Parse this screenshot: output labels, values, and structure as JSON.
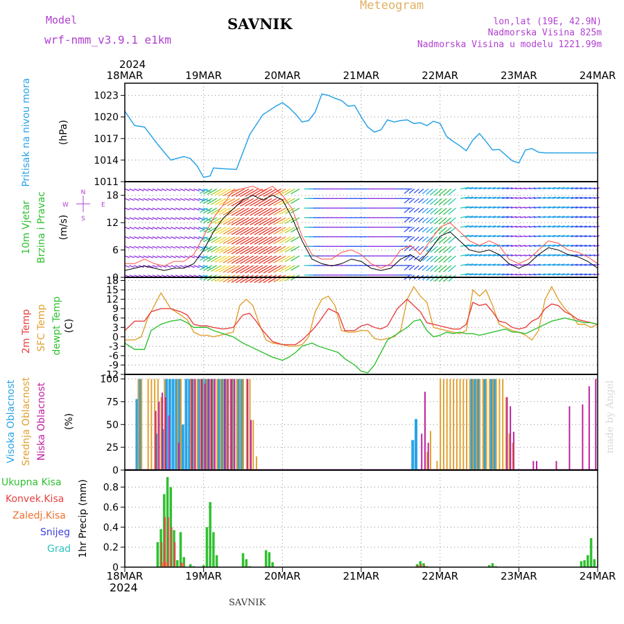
{
  "header": {
    "model_label": "Model",
    "model_name": "wrf-nmm_v3.9.1 e1km",
    "station": "SAVNIK",
    "product": "Meteogram",
    "coords": "lon,lat (19E, 42.9N)",
    "altitude": "Nadmorska Visina 825m",
    "model_altitude": "Nadmorska Visina u modelu 1221.99m",
    "year_top": "2024",
    "year_bottom": "2024",
    "footer": "SAVNIK",
    "credit": "made by Angel"
  },
  "colors": {
    "pressure": "#29a3e6",
    "temp2m": "#e84040",
    "sfc": "#e0a030",
    "dewpt": "#30c030",
    "high_cloud": "#29a3e6",
    "mid_cloud": "#e0a030",
    "low_cloud": "#c020a0",
    "total_precip": "#30c030",
    "conv_precip": "#e84040",
    "frz_precip": "#f07030",
    "snow": "#4040e0",
    "hail": "#30c0c0"
  },
  "chart_data": [
    {
      "type": "line",
      "name": "pressure",
      "ylabel_parts": [
        "Pritisak na nivou mora",
        "(hPa)"
      ],
      "ylim": [
        1011,
        1024.7
      ],
      "yticks": [
        "1011",
        "1014",
        "1017",
        "1020",
        "1023"
      ],
      "x_hours": [
        0,
        3,
        6,
        10,
        14,
        18,
        20,
        22,
        24,
        26,
        27,
        30,
        34,
        38,
        42,
        46,
        48,
        50,
        52,
        54,
        56,
        58,
        60,
        62,
        64,
        66,
        68,
        70,
        72,
        74,
        76,
        78,
        80,
        82,
        84,
        86,
        88,
        90,
        92,
        94,
        96,
        98,
        100,
        102,
        104,
        106,
        108,
        110,
        112,
        114,
        116,
        118,
        120,
        122,
        124,
        126,
        128,
        130,
        132,
        134,
        136,
        138,
        140,
        142,
        144
      ],
      "values": [
        1020.8,
        1018.8,
        1018.6,
        1016.2,
        1014.0,
        1014.5,
        1014.2,
        1013.2,
        1011.6,
        1011.8,
        1012.9,
        1012.8,
        1012.7,
        1017.5,
        1020.3,
        1021.5,
        1022.0,
        1021.3,
        1020.4,
        1019.3,
        1019.5,
        1020.7,
        1023.2,
        1023.0,
        1022.6,
        1022.3,
        1021.5,
        1021.6,
        1020.0,
        1018.6,
        1017.9,
        1018.2,
        1019.6,
        1019.3,
        1019.5,
        1019.6,
        1019.1,
        1019.2,
        1018.8,
        1019.4,
        1019.1,
        1017.3,
        1016.6,
        1016.0,
        1015.3,
        1016.8,
        1017.7,
        1016.6,
        1015.4,
        1015.5,
        1014.7,
        1013.9,
        1013.6,
        1015.4,
        1015.6,
        1015.1,
        1015.0,
        1015.0,
        1015.0,
        1015.0,
        1015.0,
        1015.0,
        1015.0,
        1015.0,
        1015.0
      ]
    },
    {
      "type": "line",
      "name": "wind",
      "ylabel_parts": [
        "10m Vjetar",
        "Brzina i Pravac",
        "(m/s)"
      ],
      "compass": [
        "N",
        "W",
        "E",
        "S"
      ],
      "ylim": [
        0,
        21
      ],
      "yticks": [
        "0",
        "6",
        "12",
        "18"
      ],
      "speed_hours": [
        0,
        3,
        6,
        9,
        12,
        15,
        18,
        21,
        24,
        27,
        30,
        33,
        36,
        39,
        42,
        45,
        48,
        51,
        54,
        57,
        60,
        63,
        66,
        69,
        72,
        75,
        78,
        81,
        84,
        87,
        90,
        93,
        96,
        99,
        102,
        105,
        108,
        111,
        114,
        117,
        120,
        123,
        126,
        129,
        132,
        135,
        138,
        141,
        144
      ],
      "speed": [
        1.5,
        2.0,
        2.5,
        2.0,
        1.5,
        2.0,
        2.0,
        3.0,
        6.0,
        10.0,
        13.0,
        15.0,
        17.0,
        18.0,
        17.0,
        18.0,
        17.0,
        13.0,
        8.0,
        4.0,
        3.0,
        2.5,
        3.0,
        4.0,
        3.5,
        2.0,
        1.5,
        2.0,
        4.0,
        5.0,
        3.5,
        6.0,
        9.0,
        10.0,
        8.0,
        6.0,
        5.5,
        6.0,
        5.0,
        3.0,
        2.0,
        3.0,
        5.0,
        6.5,
        6.0,
        5.0,
        4.5,
        3.5,
        2.0
      ],
      "gust": [
        3.0,
        3.0,
        4.0,
        3.0,
        2.5,
        3.5,
        3.5,
        5.0,
        9.0,
        13.0,
        16.0,
        19.0,
        19.5,
        20.0,
        19.0,
        20.0,
        18.0,
        15.0,
        9.0,
        5.0,
        4.0,
        4.0,
        5.5,
        6.0,
        5.0,
        3.0,
        2.0,
        3.0,
        6.0,
        7.0,
        5.0,
        8.0,
        11.0,
        12.0,
        10.0,
        8.0,
        7.0,
        8.0,
        7.0,
        4.0,
        3.0,
        4.0,
        6.0,
        8.0,
        7.5,
        6.0,
        5.5,
        4.5,
        3.0
      ]
    },
    {
      "type": "line",
      "name": "temperature",
      "ylabel_parts": [
        "2m Temp",
        "SFC Temp",
        "dewpt Temp",
        "(C)"
      ],
      "ylim": [
        -12,
        19
      ],
      "yticks": [
        "-12",
        "-9",
        "-6",
        "-3",
        "0",
        "3",
        "6",
        "9",
        "12",
        "15",
        "18"
      ],
      "series": [
        {
          "name": "2m Temp",
          "x": [
            0,
            3,
            6,
            8,
            11,
            14,
            17,
            19,
            21,
            23,
            25,
            27,
            30,
            33,
            36,
            38,
            40,
            42,
            45,
            48,
            50,
            52,
            54,
            57,
            59,
            62,
            65,
            67,
            70,
            72,
            74,
            76,
            78,
            80,
            83,
            86,
            88,
            90,
            92,
            94,
            96,
            98,
            100,
            102,
            104,
            106,
            108,
            110,
            112,
            114,
            116,
            118,
            120,
            122,
            124,
            126,
            128,
            130,
            132,
            134,
            136,
            138,
            140,
            142,
            144
          ],
          "values": [
            2,
            5,
            5,
            8,
            9,
            9,
            8,
            7,
            4,
            3.5,
            3.5,
            3,
            2.5,
            3,
            7,
            7.5,
            5,
            2,
            -1.5,
            -2.5,
            -2.5,
            -2.5,
            -1,
            2,
            4.5,
            9,
            7.5,
            2,
            2,
            3.5,
            4,
            3,
            2.5,
            3.5,
            9,
            12,
            10,
            8,
            4.5,
            4,
            3.5,
            3,
            2.5,
            2.5,
            4,
            11,
            10,
            10.5,
            8,
            5,
            4.5,
            3,
            2.5,
            3,
            5,
            6,
            9,
            10.5,
            10,
            8,
            7,
            5.5,
            5,
            4.5,
            4
          ]
        },
        {
          "name": "SFC Temp",
          "x": [
            0,
            3,
            5,
            7,
            9,
            11,
            14,
            17,
            19,
            21,
            23,
            25,
            27,
            29,
            31,
            33,
            35,
            37,
            39,
            41,
            43,
            45,
            48,
            50,
            52,
            54,
            56,
            58,
            60,
            62,
            64,
            66,
            68,
            70,
            72,
            74,
            76,
            78,
            80,
            82,
            84,
            86,
            88,
            90,
            92,
            94,
            96,
            98,
            100,
            102,
            104,
            106,
            108,
            110,
            112,
            114,
            116,
            118,
            120,
            122,
            124,
            126,
            128,
            130,
            132,
            134,
            136,
            138,
            140,
            142,
            144
          ],
          "values": [
            -1,
            -1,
            0,
            6,
            10,
            14,
            9,
            7,
            5.5,
            1.5,
            0.5,
            0.5,
            0,
            0.5,
            1,
            1.5,
            10,
            12,
            10,
            4,
            -1,
            -2,
            -2.5,
            -3,
            -3,
            -2.5,
            0,
            8,
            12,
            13,
            10,
            2,
            1.5,
            1.5,
            2,
            2,
            -0.5,
            -1,
            -0.5,
            0,
            2,
            12,
            16,
            13,
            11,
            3,
            2.5,
            2,
            1.5,
            1,
            2,
            15,
            13,
            15,
            10,
            4,
            3,
            2,
            1.5,
            0.5,
            -1,
            2,
            12,
            16,
            12,
            9,
            7,
            4,
            4,
            3,
            4
          ]
        },
        {
          "name": "dewpt Temp",
          "x": [
            0,
            3,
            6,
            8,
            11,
            14,
            17,
            19,
            21,
            23,
            25,
            27,
            30,
            33,
            36,
            38,
            40,
            42,
            45,
            48,
            50,
            52,
            54,
            57,
            59,
            62,
            65,
            67,
            70,
            72,
            74,
            76,
            78,
            80,
            83,
            86,
            88,
            90,
            92,
            94,
            96,
            98,
            100,
            102,
            104,
            106,
            108,
            110,
            112,
            114,
            116,
            118,
            120,
            122,
            124,
            126,
            128,
            130,
            132,
            134,
            136,
            138,
            140,
            142,
            144
          ],
          "values": [
            -2,
            -4,
            -4,
            2,
            4,
            5,
            5.5,
            4.5,
            3,
            3,
            3,
            2,
            1,
            0,
            -2,
            -3,
            -4,
            -5,
            -6.5,
            -7.5,
            -6.5,
            -5,
            -3,
            -2,
            -3,
            -4,
            -5,
            -7,
            -9,
            -11,
            -11.5,
            -9,
            -5,
            -1,
            1,
            3,
            5,
            5.5,
            2,
            0,
            0.5,
            1.5,
            1,
            1.5,
            1,
            1,
            0.5,
            1,
            1.5,
            2,
            2.5,
            1.5,
            1.5,
            1,
            2,
            3,
            4,
            5,
            5.5,
            6,
            5.5,
            5,
            4.5,
            4.5,
            4
          ]
        }
      ]
    },
    {
      "type": "bar",
      "name": "cloud",
      "ylabel_parts": [
        "Visoka Oblacnost",
        "Srednja Oblacnost",
        "Niska Oblacnost",
        "(%)"
      ],
      "ylim": [
        0,
        105
      ],
      "yticks": [
        "0",
        "25",
        "50",
        "75",
        "100"
      ],
      "series": [
        {
          "name": "Visoka Oblacnost",
          "hours": [
            4,
            5,
            10,
            12,
            13,
            14,
            15,
            16,
            17,
            18,
            19,
            20,
            21,
            23,
            24,
            25,
            26,
            27,
            29,
            30,
            31,
            33,
            35,
            36,
            88,
            89,
            106,
            107,
            108,
            110,
            112,
            113
          ],
          "values": [
            78,
            100,
            40,
            45,
            100,
            100,
            100,
            100,
            100,
            50,
            100,
            100,
            100,
            100,
            100,
            100,
            100,
            100,
            100,
            100,
            100,
            100,
            100,
            100,
            33,
            56,
            100,
            100,
            100,
            100,
            100,
            100
          ]
        },
        {
          "name": "Srednja Oblacnost",
          "hours": [
            4,
            5,
            7,
            8,
            9,
            10,
            11,
            12,
            16,
            17,
            20,
            21,
            22,
            23,
            24,
            25,
            26,
            27,
            28,
            29,
            30,
            31,
            32,
            33,
            34,
            35,
            36,
            37,
            38,
            39,
            40,
            92,
            93,
            95,
            96,
            97,
            98,
            99,
            100,
            101,
            102,
            103,
            104,
            105,
            106,
            107,
            108,
            109,
            110,
            111,
            112,
            113,
            114,
            115,
            116,
            117,
            118
          ],
          "values": [
            100,
            100,
            100,
            100,
            100,
            100,
            80,
            100,
            100,
            100,
            100,
            100,
            100,
            100,
            100,
            100,
            100,
            100,
            100,
            100,
            100,
            100,
            100,
            100,
            100,
            100,
            100,
            100,
            100,
            55,
            15,
            20,
            43,
            10,
            100,
            100,
            100,
            100,
            100,
            100,
            100,
            100,
            100,
            100,
            100,
            100,
            100,
            100,
            100,
            100,
            100,
            100,
            100,
            100,
            80,
            40,
            30
          ]
        },
        {
          "name": "Niska Oblacnost",
          "hours": [
            9,
            10,
            11,
            12,
            13,
            16,
            20,
            21,
            23,
            24,
            25,
            26,
            27,
            30,
            31,
            32,
            33,
            37,
            38,
            90,
            91,
            92,
            116,
            117,
            118,
            124,
            125,
            131,
            135,
            139,
            141,
            143
          ],
          "values": [
            65,
            75,
            85,
            80,
            60,
            30,
            100,
            100,
            100,
            95,
            100,
            100,
            100,
            100,
            100,
            100,
            100,
            100,
            55,
            40,
            86,
            30,
            80,
            70,
            42,
            10,
            10,
            10,
            70,
            72,
            92,
            100
          ]
        }
      ]
    },
    {
      "type": "bar",
      "name": "precipitation",
      "ylabel_parts": [
        "1hr Precip (mm)"
      ],
      "legend": [
        "Ukupna Kisa",
        "Konvek.Kisa",
        "Zaledj.Kisa",
        "Snijeg",
        "Grad"
      ],
      "ylim": [
        0,
        0.97
      ],
      "yticks": [
        "0",
        "0.2",
        "0.4",
        "0.6",
        "0.8"
      ],
      "series": [
        {
          "name": "Ukupna Kisa",
          "hours": [
            10,
            11,
            12,
            13,
            14,
            15,
            16,
            17,
            18,
            20,
            21,
            24,
            25,
            26,
            27,
            28,
            36,
            37,
            38,
            43,
            44,
            45,
            89,
            90,
            91,
            92,
            111,
            112,
            113,
            139,
            140,
            141,
            142,
            143
          ],
          "values": [
            0.25,
            0.38,
            0.73,
            0.9,
            0.8,
            0.37,
            0.07,
            0.35,
            0.1,
            0.03,
            0.01,
            0.02,
            0.4,
            0.65,
            0.35,
            0.12,
            0.14,
            0.08,
            0.01,
            0.17,
            0.15,
            0.05,
            0.03,
            0.06,
            0.04,
            0.01,
            0.02,
            0.04,
            0.01,
            0.06,
            0.07,
            0.12,
            0.29,
            0.08
          ]
        },
        {
          "name": "Konvek.Kisa",
          "hours": [
            11,
            12,
            13,
            14,
            15,
            17,
            89,
            90,
            91
          ],
          "values": [
            0.25,
            0.5,
            0.5,
            0.4,
            0.25,
            0.05,
            0.02,
            0.03,
            0.02
          ]
        },
        {
          "name": "Zaledj.Kisa",
          "hours": [
            12,
            13,
            18
          ],
          "values": [
            0.05,
            0.05,
            0.04
          ]
        }
      ]
    }
  ],
  "x_axis": {
    "ticks": [
      "18MAR",
      "19MAR",
      "20MAR",
      "21MAR",
      "22MAR",
      "23MAR",
      "24MAR"
    ],
    "tick_hours": [
      0,
      24,
      48,
      72,
      96,
      120,
      144
    ],
    "range_hours": [
      0,
      144
    ]
  }
}
